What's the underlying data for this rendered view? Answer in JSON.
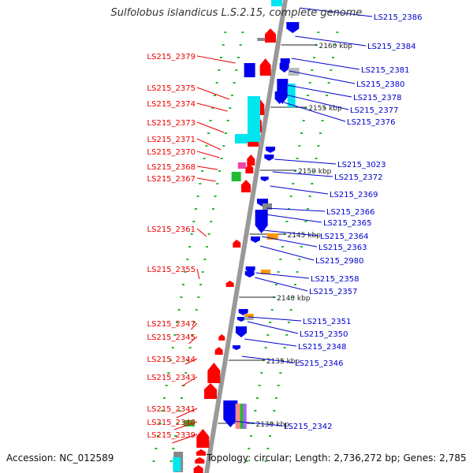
{
  "title": "Sulfolobus islandicus L.S.2.15, complete genome",
  "accession": "Accession: NC_012589",
  "topology": "Topology: circular; Length: 2,736,272 bp; Genes: 2,785",
  "kbp_labels": [
    "2160 kbp",
    "2155 kbp",
    "2150 kbp",
    "2145 kbp",
    "2140 kbp",
    "2135 kbp",
    "2130 kbp"
  ],
  "left_genes": [
    "LS215_2379",
    "LS215_2375",
    "LS215_2374",
    "LS215_2373",
    "LS215_2371",
    "LS215_2370",
    "LS215_2368",
    "LS215_2367",
    "LS215_2361",
    "LS215_2355",
    "LS215_2347",
    "LS215_2345",
    "LS215_2344",
    "LS215_2343",
    "LS215_2341",
    "LS215_2340",
    "LS215_2339"
  ],
  "right_genes": [
    "LS215_2386",
    "LS215_2384",
    "LS215_2381",
    "LS215_2380",
    "LS215_2378",
    "LS215_2377",
    "LS215_2376",
    "LS215_3023",
    "LS215_2372",
    "LS215_2369",
    "LS215_2366",
    "LS215_2365",
    "LS215_2364",
    "LS215_2363",
    "LS215_2980",
    "LS215_2358",
    "LS215_2357",
    "LS215_2351",
    "LS215_2350",
    "LS215_2348",
    "LS215_2346",
    "LS215_2342"
  ],
  "colors": {
    "forward": "#ff0000",
    "reverse": "#0000ee",
    "cyan": "#00e6ee",
    "orange": "#ff9900",
    "gray": "#888888",
    "green": "#22bb33",
    "magenta": "#ee44aa",
    "backbone": "#999999",
    "label_left": "#ee0000",
    "label_right": "#0000cc"
  }
}
